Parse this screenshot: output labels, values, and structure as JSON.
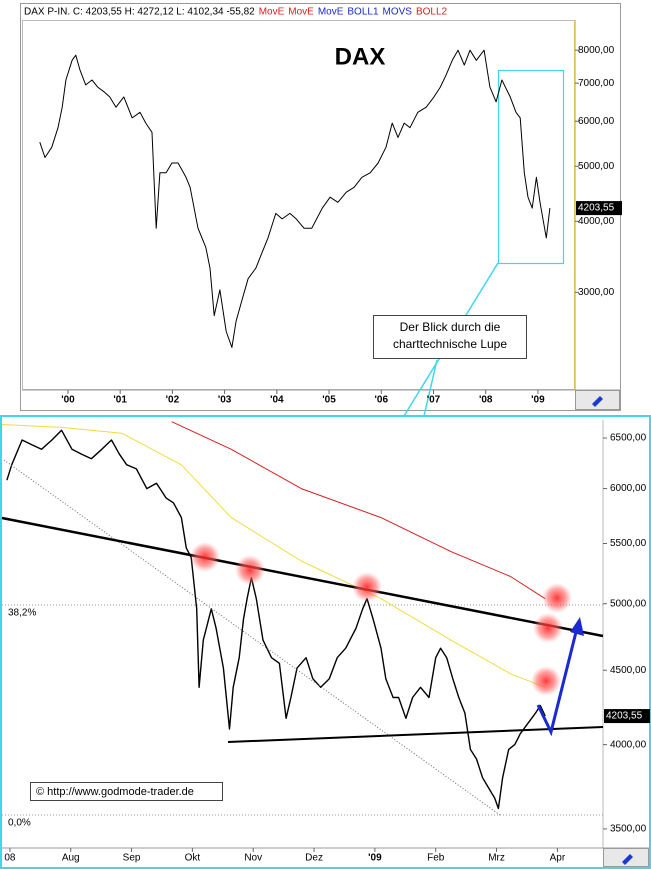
{
  "chart_data": [
    {
      "type": "line",
      "title": "DAX",
      "header_items": [
        {
          "text": "DAX P-IN. C: 4203,55 H: 4272,12 L: 4102,34 -55,82",
          "color": "#000000"
        },
        {
          "text": "MovE",
          "color": "#d42020"
        },
        {
          "text": "MovE",
          "color": "#d42020"
        },
        {
          "text": "MovE",
          "color": "#1a2ad0"
        },
        {
          "text": "BOLL1",
          "color": "#1a2ad0"
        },
        {
          "text": "MOVS",
          "color": "#1a2ad0"
        },
        {
          "text": "BOLL2",
          "color": "#d42020"
        }
      ],
      "annotation": [
        "Der Blick durch die",
        "charttechnische Lupe"
      ],
      "price_label": "4203,55",
      "color": "#000000",
      "log_y": true,
      "xlim": [
        1999.12,
        2009.71
      ],
      "ylim": [
        2020,
        9040
      ],
      "xticks": [
        {
          "value": 2000,
          "label": "'00"
        },
        {
          "value": 2001,
          "label": "'01"
        },
        {
          "value": 2002,
          "label": "'02"
        },
        {
          "value": 2003,
          "label": "'03"
        },
        {
          "value": 2004,
          "label": "'04"
        },
        {
          "value": 2005,
          "label": "'05"
        },
        {
          "value": 2006,
          "label": "'06"
        },
        {
          "value": 2007,
          "label": "'07"
        },
        {
          "value": 2008,
          "label": "'08"
        },
        {
          "value": 2009,
          "label": "'09"
        }
      ],
      "yticks": [
        {
          "value": 3000,
          "label": "3000,00"
        },
        {
          "value": 4000,
          "label": "4000,00"
        },
        {
          "value": 5000,
          "label": "5000,00"
        },
        {
          "value": 6000,
          "label": "6000,00"
        },
        {
          "value": 7000,
          "label": "7000,00"
        },
        {
          "value": 8000,
          "label": "8000,00"
        }
      ],
      "x": [
        1999.46,
        1999.56,
        1999.69,
        1999.81,
        1999.89,
        1999.96,
        2000.08,
        2000.15,
        2000.23,
        2000.34,
        2000.46,
        2000.57,
        2000.69,
        2000.8,
        2000.92,
        2001.07,
        2001.23,
        2001.38,
        2001.49,
        2001.61,
        2001.69,
        2001.76,
        2001.88,
        2001.99,
        2002.11,
        2002.26,
        2002.34,
        2002.49,
        2002.64,
        2002.72,
        2002.8,
        2002.91,
        2003.03,
        2003.14,
        2003.22,
        2003.33,
        2003.45,
        2003.6,
        2003.72,
        2003.83,
        2003.98,
        2004.1,
        2004.25,
        2004.37,
        2004.52,
        2004.67,
        2004.87,
        2005.02,
        2005.17,
        2005.33,
        2005.48,
        2005.63,
        2005.79,
        2005.94,
        2006.09,
        2006.21,
        2006.32,
        2006.44,
        2006.55,
        2006.7,
        2006.86,
        2007.01,
        2007.13,
        2007.24,
        2007.36,
        2007.47,
        2007.59,
        2007.7,
        2007.82,
        2007.97,
        2008.08,
        2008.2,
        2008.31,
        2008.47,
        2008.58,
        2008.66,
        2008.74,
        2008.81,
        2008.89,
        2008.97,
        2009.04,
        2009.16,
        2009.23
      ],
      "values": [
        5510,
        5180,
        5400,
        5845,
        6350,
        7090,
        7680,
        7840,
        7380,
        6950,
        7090,
        6890,
        6760,
        6620,
        6350,
        6620,
        6080,
        6220,
        5955,
        5735,
        3890,
        4870,
        4870,
        5065,
        5065,
        4780,
        4590,
        3890,
        3600,
        3310,
        2730,
        3030,
        2560,
        2400,
        2670,
        2900,
        3170,
        3310,
        3530,
        3740,
        4130,
        4040,
        4130,
        4040,
        3890,
        3890,
        4220,
        4410,
        4320,
        4500,
        4590,
        4780,
        4870,
        5065,
        5400,
        5955,
        5620,
        5955,
        5845,
        6220,
        6350,
        6620,
        6890,
        7230,
        7680,
        8000,
        7530,
        8000,
        7680,
        8000,
        6890,
        6490,
        7090,
        6620,
        6220,
        6080,
        4870,
        4410,
        4220,
        4780,
        4320,
        3740,
        4220
      ]
    },
    {
      "type": "line",
      "log_y": true,
      "copyright": "© http://www.godmode-trader.de",
      "price_label": "4203,55",
      "fib_levels": [
        {
          "value": 4990,
          "label": "38,2%"
        },
        {
          "value": 3578,
          "label": "0,0%"
        }
      ],
      "xlim": [
        5.87,
        15.75
      ],
      "ylim": [
        3396,
        6688
      ],
      "xticks": [
        {
          "value": 6,
          "label": "08"
        },
        {
          "value": 7,
          "label": "Aug"
        },
        {
          "value": 8,
          "label": "Sep"
        },
        {
          "value": 9,
          "label": "Okt"
        },
        {
          "value": 10,
          "label": "Nov"
        },
        {
          "value": 11,
          "label": "Dez"
        },
        {
          "value": 12,
          "label": "'09"
        },
        {
          "value": 13,
          "label": "Feb"
        },
        {
          "value": 14,
          "label": "Mrz"
        },
        {
          "value": 15,
          "label": "Apr"
        }
      ],
      "yticks": [
        {
          "value": 3500,
          "label": "3500,00"
        },
        {
          "value": 4000,
          "label": "4000,00"
        },
        {
          "value": 4500,
          "label": "4500,00"
        },
        {
          "value": 5000,
          "label": "5000,00"
        },
        {
          "value": 5500,
          "label": "5500,00"
        },
        {
          "value": 6000,
          "label": "6000,00"
        },
        {
          "value": 6500,
          "label": "6500,00"
        }
      ],
      "series": [
        {
          "color": "#000000",
          "x": [
            5.95,
            6.03,
            6.2,
            6.36,
            6.52,
            6.69,
            6.85,
            7.02,
            7.18,
            7.34,
            7.51,
            7.67,
            7.8,
            7.92,
            8.08,
            8.25,
            8.41,
            8.57,
            8.69,
            8.82,
            8.9,
            8.98,
            9.07,
            9.11,
            9.18,
            9.31,
            9.39,
            9.51,
            9.61,
            9.67,
            9.77,
            9.84,
            9.9,
            9.97,
            10.05,
            10.16,
            10.3,
            10.43,
            10.54,
            10.62,
            10.72,
            10.87,
            10.98,
            11.11,
            11.25,
            11.38,
            11.52,
            11.69,
            11.8,
            11.87,
            11.97,
            12.1,
            12.18,
            12.3,
            12.39,
            12.51,
            12.62,
            12.75,
            12.89,
            13.0,
            13.08,
            13.18,
            13.28,
            13.38,
            13.48,
            13.57,
            13.67,
            13.77,
            13.87,
            13.97,
            14.03,
            14.1,
            14.2,
            14.3,
            14.39,
            14.52,
            14.64,
            14.72,
            14.8
          ],
          "values": [
            6080,
            6230,
            6480,
            6430,
            6385,
            6480,
            6580,
            6385,
            6335,
            6290,
            6385,
            6480,
            6335,
            6230,
            6190,
            6000,
            6050,
            5910,
            5865,
            5730,
            5460,
            5380,
            4960,
            4380,
            4720,
            4960,
            4810,
            4515,
            4100,
            4380,
            4590,
            4880,
            5040,
            5210,
            5040,
            4720,
            4590,
            4550,
            4170,
            4310,
            4515,
            4590,
            4440,
            4380,
            4440,
            4590,
            4660,
            4810,
            4960,
            5040,
            4880,
            4660,
            4440,
            4310,
            4310,
            4170,
            4310,
            4380,
            4310,
            4590,
            4660,
            4590,
            4440,
            4310,
            4205,
            3970,
            3910,
            3795,
            3735,
            3675,
            3615,
            3795,
            3970,
            4000,
            4070,
            4140,
            4205,
            4255,
            4185
          ]
        },
        {
          "color": "#d42020",
          "x": [
            8.66,
            9.64,
            10.79,
            12.1,
            13.25,
            14.23,
            14.8
          ],
          "values": [
            6670,
            6385,
            6000,
            5730,
            5430,
            5220,
            5040
          ]
        },
        {
          "color": "#f0dc40",
          "x": [
            5.87,
            6.85,
            7.84,
            8.82,
            9.64,
            10.79,
            12.1,
            13.25,
            14.23,
            14.8
          ],
          "values": [
            6640,
            6610,
            6550,
            6230,
            5730,
            5350,
            5040,
            4720,
            4475,
            4380
          ]
        }
      ]
    }
  ]
}
